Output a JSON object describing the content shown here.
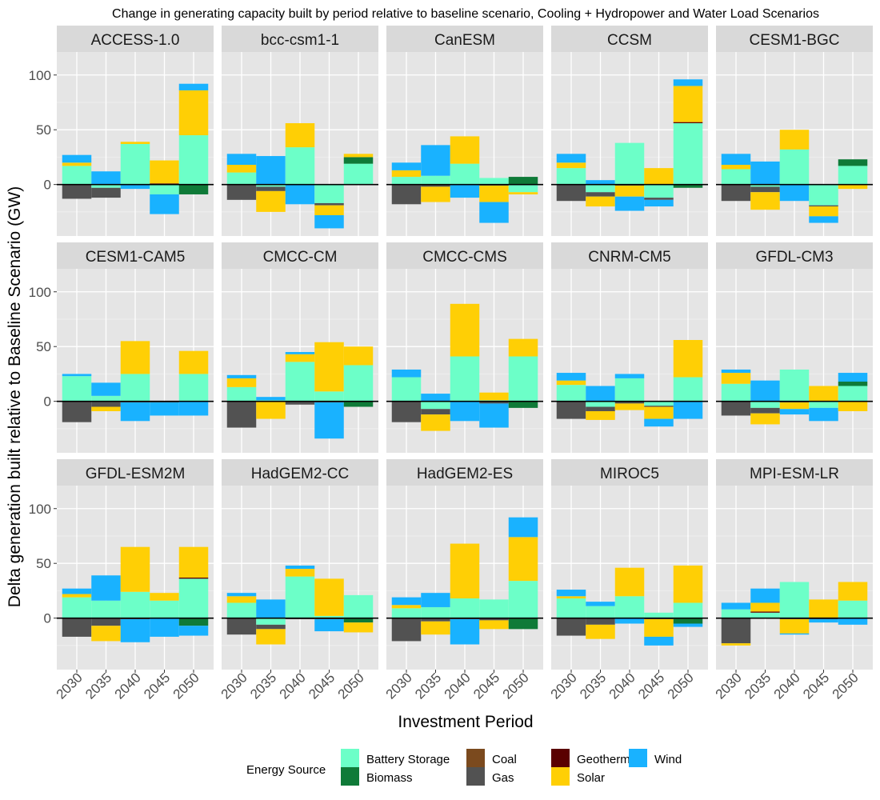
{
  "chart_data": {
    "type": "bar",
    "stacked": true,
    "title": "Change in generating capacity built by period relative to baseline scenario, Cooling + Hydropower and Water Load Scenarios",
    "xlabel": "Investment Period",
    "ylabel": "Delta generation built relative to Baseline Scenario (GW)",
    "ylim": [
      -47,
      121
    ],
    "yticks": [
      0,
      50,
      100
    ],
    "categories": [
      "2030",
      "2035",
      "2040",
      "2045",
      "2050"
    ],
    "grid": true,
    "legend": {
      "title": "Energy Source",
      "position": "bottom",
      "entries": [
        {
          "name": "Battery Storage",
          "color": "#6cffc8"
        },
        {
          "name": "Biomass",
          "color": "#0f7a38"
        },
        {
          "name": "Coal",
          "color": "#7b4a1e"
        },
        {
          "name": "Gas",
          "color": "#525252"
        },
        {
          "name": "Geothermal",
          "color": "#5a0000"
        },
        {
          "name": "Solar",
          "color": "#ffcf05"
        },
        {
          "name": "Wind",
          "color": "#19b2ff"
        }
      ]
    },
    "source_order": [
      "Battery Storage",
      "Biomass",
      "Coal",
      "Gas",
      "Geothermal",
      "Solar",
      "Wind"
    ],
    "panels": [
      {
        "name": "ACCESS-1.0",
        "stacks": [
          {
            "Battery Storage": 17,
            "Solar": 3,
            "Wind": 7,
            "Gas": -13
          },
          {
            "Wind": 12,
            "Gas": -9,
            "Battery Storage": -3
          },
          {
            "Battery Storage": 37,
            "Solar": 2,
            "Wind": -4
          },
          {
            "Solar": 21,
            "Geothermal": 1,
            "Wind": -18,
            "Battery Storage": -9
          },
          {
            "Battery Storage": 45,
            "Solar": 41,
            "Wind": 6,
            "Biomass": -9
          }
        ]
      },
      {
        "name": "bcc-csm1-1",
        "stacks": [
          {
            "Battery Storage": 11,
            "Solar": 7,
            "Wind": 10,
            "Gas": -14
          },
          {
            "Wind": 26,
            "Solar": -19,
            "Gas": -4,
            "Battery Storage": -2
          },
          {
            "Battery Storage": 34,
            "Solar": 22,
            "Wind": -18
          },
          {
            "Wind": -12,
            "Solar": -9,
            "Gas": -2,
            "Battery Storage": -17
          },
          {
            "Battery Storage": 19,
            "Solar": 3,
            "Biomass": 6
          }
        ]
      },
      {
        "name": "CanESM",
        "stacks": [
          {
            "Battery Storage": 7,
            "Solar": 6,
            "Wind": 7,
            "Gas": -18
          },
          {
            "Battery Storage": 8,
            "Wind": 28,
            "Solar": -14,
            "Gas": -2
          },
          {
            "Battery Storage": 19,
            "Solar": 25,
            "Wind": -12
          },
          {
            "Battery Storage": 6,
            "Wind": -19,
            "Solar": -15,
            "Gas": -1
          },
          {
            "Biomass": 7,
            "Solar": -2,
            "Battery Storage": -7
          }
        ]
      },
      {
        "name": "CCSM",
        "stacks": [
          {
            "Battery Storage": 15,
            "Solar": 5,
            "Wind": 8,
            "Gas": -15
          },
          {
            "Wind": 4,
            "Solar": -9,
            "Gas": -4,
            "Battery Storage": -7
          },
          {
            "Battery Storage": 38,
            "Wind": -13,
            "Solar": -10,
            "Gas": -1
          },
          {
            "Solar": 15,
            "Wind": -6,
            "Gas": -2,
            "Battery Storage": -12
          },
          {
            "Battery Storage": 56,
            "Geothermal": 1,
            "Solar": 33,
            "Wind": 6,
            "Biomass": -3
          }
        ]
      },
      {
        "name": "CESM1-BGC",
        "stacks": [
          {
            "Battery Storage": 14,
            "Solar": 4,
            "Wind": 10,
            "Gas": -15
          },
          {
            "Wind": 21,
            "Solar": -16,
            "Gas": -5,
            "Battery Storage": -2
          },
          {
            "Battery Storage": 32,
            "Solar": 18,
            "Wind": -15
          },
          {
            "Wind": -6,
            "Solar": -9,
            "Gas": -1,
            "Battery Storage": -19
          },
          {
            "Battery Storage": 17,
            "Biomass": 6,
            "Solar": -4
          }
        ]
      },
      {
        "name": "CESM1-CAM5",
        "stacks": [
          {
            "Battery Storage": 23,
            "Wind": 2,
            "Gas": -19
          },
          {
            "Battery Storage": 5,
            "Wind": 12,
            "Solar": -4,
            "Gas": -5
          },
          {
            "Battery Storage": 25,
            "Solar": 30,
            "Wind": -17,
            "Gas": -1
          },
          {
            "Wind": -12,
            "Gas": -1
          },
          {
            "Battery Storage": 25,
            "Solar": 21,
            "Wind": -13
          }
        ]
      },
      {
        "name": "CMCC-CM",
        "stacks": [
          {
            "Battery Storage": 13,
            "Solar": 8,
            "Wind": 3,
            "Gas": -24
          },
          {
            "Battery Storage": 1,
            "Wind": 3,
            "Solar": -16
          },
          {
            "Battery Storage": 36,
            "Solar": 7,
            "Wind": 2,
            "Gas": -3
          },
          {
            "Battery Storage": 9,
            "Solar": 45,
            "Wind": -33,
            "Gas": -1
          },
          {
            "Battery Storage": 33,
            "Solar": 17,
            "Biomass": -5
          }
        ]
      },
      {
        "name": "CMCC-CMS",
        "stacks": [
          {
            "Battery Storage": 22,
            "Wind": 7,
            "Gas": -19
          },
          {
            "Wind": 7,
            "Solar": -15,
            "Gas": -5,
            "Battery Storage": -7
          },
          {
            "Battery Storage": 41,
            "Solar": 48,
            "Wind": -18
          },
          {
            "Battery Storage": 1,
            "Solar": 7,
            "Wind": -22,
            "Gas": -2
          },
          {
            "Battery Storage": 41,
            "Solar": 16,
            "Biomass": -6
          }
        ]
      },
      {
        "name": "CNRM-CM5",
        "stacks": [
          {
            "Battery Storage": 15,
            "Solar": 4,
            "Wind": 7,
            "Gas": -16
          },
          {
            "Wind": 14,
            "Solar": -8,
            "Gas": -4,
            "Battery Storage": -5
          },
          {
            "Battery Storage": 21,
            "Wind": 4,
            "Solar": -6,
            "Gas": -2
          },
          {
            "Wind": -7,
            "Solar": -11,
            "Gas": -1,
            "Battery Storage": -4
          },
          {
            "Battery Storage": 22,
            "Solar": 34,
            "Wind": -16
          }
        ]
      },
      {
        "name": "GFDL-CM3",
        "stacks": [
          {
            "Battery Storage": 16,
            "Solar": 10,
            "Wind": 3,
            "Gas": -13
          },
          {
            "Wind": 19,
            "Solar": -10,
            "Gas": -5,
            "Battery Storage": -6
          },
          {
            "Battery Storage": 29,
            "Wind": -5,
            "Solar": -6,
            "Gas": -1
          },
          {
            "Solar": 14,
            "Wind": -12,
            "Battery Storage": -6
          },
          {
            "Battery Storage": 14,
            "Biomass": 4,
            "Wind": 8,
            "Solar": -9
          }
        ]
      },
      {
        "name": "GFDL-ESM2M",
        "stacks": [
          {
            "Battery Storage": 19,
            "Solar": 3,
            "Wind": 5,
            "Gas": -17
          },
          {
            "Battery Storage": 16,
            "Wind": 23,
            "Solar": -14,
            "Gas": -7
          },
          {
            "Battery Storage": 24,
            "Solar": 41,
            "Wind": -21,
            "Gas": -1
          },
          {
            "Battery Storage": 16,
            "Solar": 7,
            "Wind": -17
          },
          {
            "Battery Storage": 36,
            "Geothermal": 1,
            "Solar": 28,
            "Wind": -9,
            "Biomass": -7
          }
        ]
      },
      {
        "name": "HadGEM2-CC",
        "stacks": [
          {
            "Battery Storage": 14,
            "Solar": 6,
            "Wind": 3,
            "Gas": -15
          },
          {
            "Wind": 17,
            "Solar": -14,
            "Gas": -4,
            "Battery Storage": -6
          },
          {
            "Battery Storage": 38,
            "Solar": 7,
            "Wind": 3,
            "Gas": -1
          },
          {
            "Battery Storage": 2,
            "Solar": 34,
            "Wind": -11,
            "Gas": -1
          },
          {
            "Battery Storage": 21,
            "Solar": -9,
            "Biomass": -4
          }
        ]
      },
      {
        "name": "HadGEM2-ES",
        "stacks": [
          {
            "Battery Storage": 9,
            "Solar": 3,
            "Wind": 7,
            "Gas": -21
          },
          {
            "Battery Storage": 10,
            "Wind": 13,
            "Solar": -12,
            "Gas": -3
          },
          {
            "Battery Storage": 18,
            "Solar": 50,
            "Wind": -23,
            "Gas": -1
          },
          {
            "Battery Storage": 17,
            "Solar": -8,
            "Gas": -2
          },
          {
            "Battery Storage": 34,
            "Solar": 40,
            "Wind": 18,
            "Biomass": -10
          }
        ]
      },
      {
        "name": "MIROC5",
        "stacks": [
          {
            "Battery Storage": 18,
            "Solar": 2,
            "Wind": 6,
            "Gas": -16
          },
          {
            "Battery Storage": 11,
            "Wind": 4,
            "Solar": -13,
            "Gas": -6
          },
          {
            "Battery Storage": 20,
            "Solar": 26,
            "Wind": -5
          },
          {
            "Battery Storage": 5,
            "Solar": -16,
            "Gas": -1,
            "Wind": -8
          },
          {
            "Battery Storage": 14,
            "Solar": 34,
            "Wind": -3,
            "Biomass": -5
          }
        ]
      },
      {
        "name": "MPI-ESM-LR",
        "stacks": [
          {
            "Battery Storage": 8,
            "Wind": 6,
            "Solar": -2,
            "Gas": -23
          },
          {
            "Battery Storage": 5,
            "Solar": 8,
            "Wind": 13,
            "Geothermal": 1
          },
          {
            "Battery Storage": 33,
            "Solar": -13,
            "Wind": -1,
            "Gas": -1
          },
          {
            "Solar": 17,
            "Wind": -3,
            "Gas": -1
          },
          {
            "Battery Storage": 16,
            "Solar": 17,
            "Wind": -6
          }
        ]
      }
    ]
  }
}
